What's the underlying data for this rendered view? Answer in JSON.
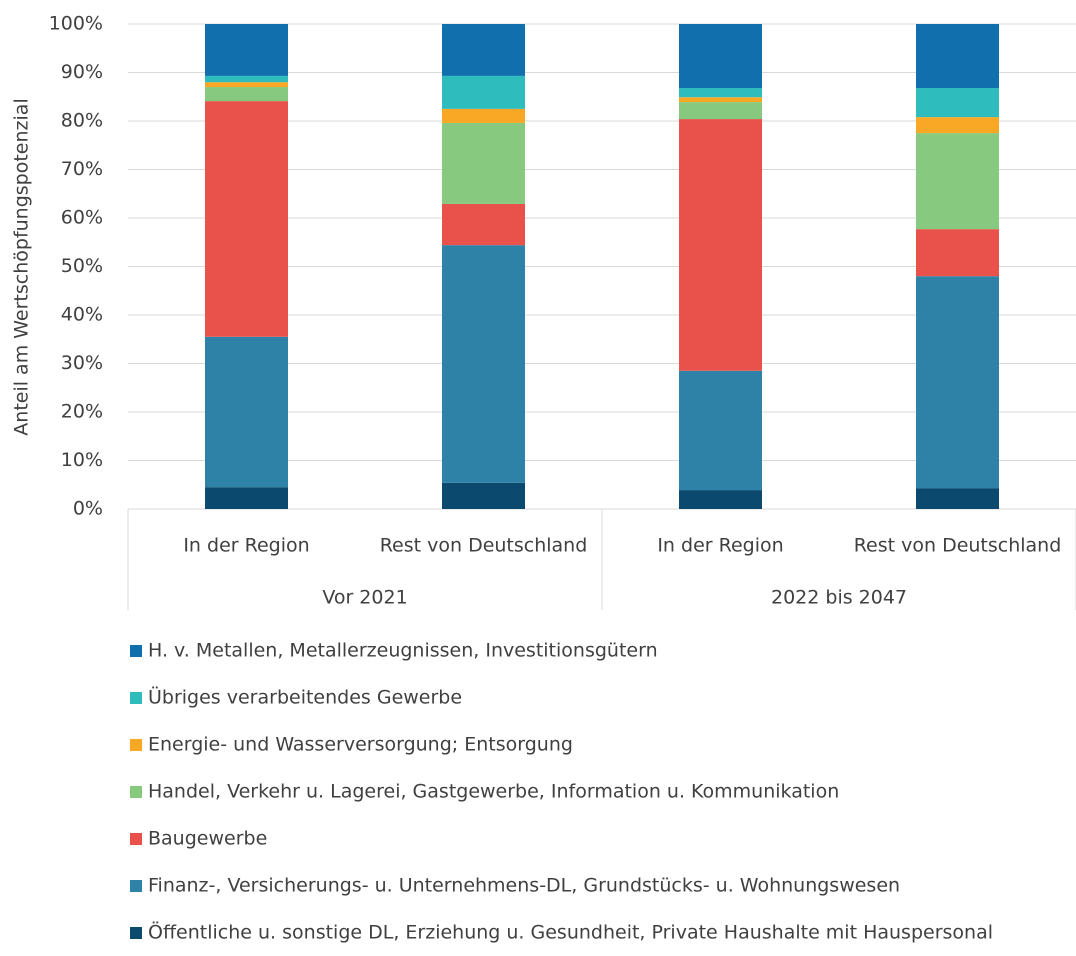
{
  "chart_data": {
    "type": "stacked_bar",
    "ylabel": "Anteil am Wertschöpfungspotenzial",
    "category_groups": [
      {
        "name": "Vor 2021",
        "categories": [
          "In der Region",
          "Rest von Deutschland"
        ]
      },
      {
        "name": "2022 bis 2047",
        "categories": [
          "In der Region",
          "Rest von Deutschland"
        ]
      }
    ],
    "series": [
      {
        "name": "H. v. Metallen, Metallerzeugnissen, Investitionsgütern",
        "color": "#116fae",
        "values": [
          10.7,
          10.7,
          13.2,
          13.2
        ]
      },
      {
        "name": "Übriges verarbeitendes Gewerbe",
        "color": "#2fbcbc",
        "values": [
          1.3,
          6.8,
          1.9,
          6.0
        ]
      },
      {
        "name": "Energie- und Wasserversorgung; Entsorgung",
        "color": "#f9a825",
        "values": [
          1.0,
          2.9,
          1.0,
          3.3
        ]
      },
      {
        "name": "Handel, Verkehr u. Lagerei, Gastgewerbe, Information u. Kommunikation",
        "color": "#86c97f",
        "values": [
          2.9,
          16.7,
          3.5,
          19.8
        ]
      },
      {
        "name": "Baugewerbe",
        "color": "#e8524a",
        "values": [
          48.6,
          8.5,
          51.9,
          9.7
        ]
      },
      {
        "name": "Finanz-, Versicherungs- u. Unternehmens-DL, Grundstücks- u. Wohnungswesen",
        "color": "#2e82a8",
        "values": [
          31.0,
          49.0,
          24.6,
          43.7
        ]
      },
      {
        "name": "Öffentliche u. sonstige DL, Erziehung u. Gesundheit, Private Haushalte mit Hauspersonal",
        "color": "#0b4a6e",
        "values": [
          4.5,
          5.4,
          3.9,
          4.3
        ]
      }
    ],
    "ylim": [
      0,
      100
    ],
    "yticks": [
      {
        "value": 0,
        "label": "0%"
      },
      {
        "value": 10,
        "label": "10%"
      },
      {
        "value": 20,
        "label": "20%"
      },
      {
        "value": 30,
        "label": "30%"
      },
      {
        "value": 40,
        "label": "40%"
      },
      {
        "value": 50,
        "label": "50%"
      },
      {
        "value": 60,
        "label": "60%"
      },
      {
        "value": 70,
        "label": "70%"
      },
      {
        "value": 80,
        "label": "80%"
      },
      {
        "value": 90,
        "label": "90%"
      },
      {
        "value": 100,
        "label": "100%"
      }
    ],
    "grid": true
  }
}
